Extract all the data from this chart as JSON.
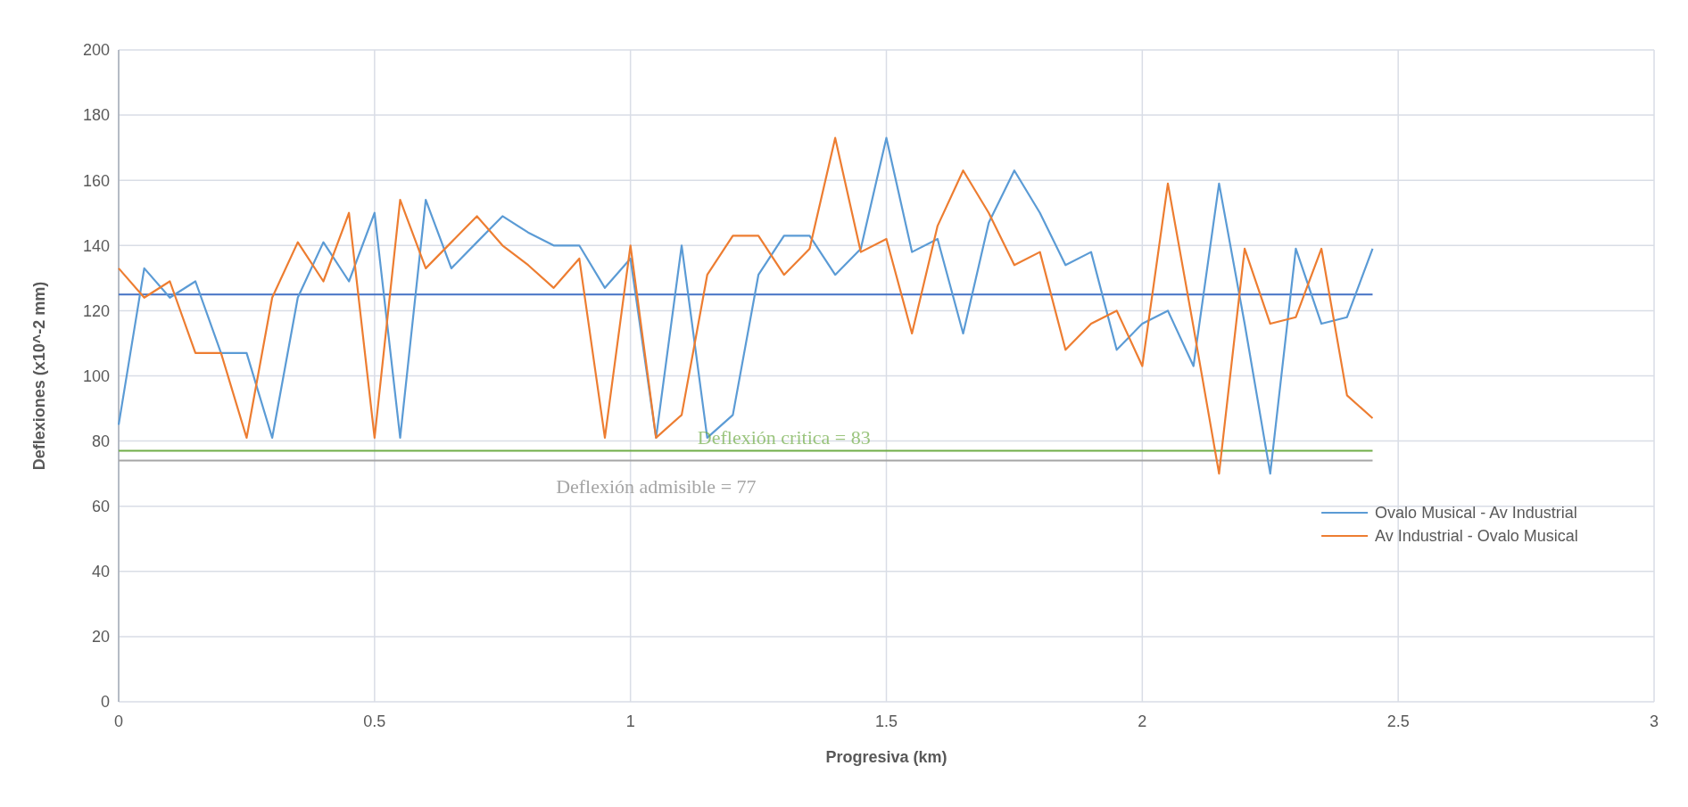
{
  "chart_data": {
    "type": "line",
    "xlabel": "Progresiva (km)",
    "ylabel": "Deflexiones (x10^-2 mm)",
    "x": [
      0,
      0.05,
      0.1,
      0.15,
      0.2,
      0.25,
      0.3,
      0.35,
      0.4,
      0.45,
      0.5,
      0.55,
      0.6,
      0.65,
      0.7,
      0.75,
      0.8,
      0.85,
      0.9,
      0.95,
      1,
      1.05,
      1.1,
      1.15,
      1.2,
      1.25,
      1.3,
      1.35,
      1.4,
      1.45,
      1.5,
      1.55,
      1.6,
      1.65,
      1.7,
      1.75,
      1.8,
      1.85,
      1.9,
      1.95,
      2,
      2.05,
      2.1,
      2.15,
      2.2,
      2.25,
      2.3,
      2.35,
      2.4,
      2.45
    ],
    "series": [
      {
        "name": "Ovalo Musical - Av Industrial",
        "color": "#5b9bd5",
        "values": [
          85,
          133,
          124,
          129,
          107,
          107,
          81,
          124,
          141,
          129,
          150,
          81,
          154,
          133,
          141,
          149,
          144,
          140,
          140,
          127,
          136,
          81,
          140,
          81,
          88,
          131,
          143,
          143,
          131,
          139,
          173,
          138,
          142,
          113,
          147,
          163,
          150,
          134,
          138,
          108,
          116,
          120,
          103,
          159,
          116,
          70,
          139,
          116,
          118,
          139
        ]
      },
      {
        "name": "Av Industrial - Ovalo Musical",
        "color": "#ed7d31",
        "values": [
          133,
          124,
          129,
          107,
          107,
          81,
          124,
          141,
          129,
          150,
          81,
          154,
          133,
          141,
          149,
          140,
          134,
          127,
          136,
          81,
          140,
          81,
          88,
          131,
          143,
          143,
          131,
          139,
          173,
          138,
          142,
          113,
          146,
          163,
          150,
          134,
          138,
          108,
          116,
          120,
          103,
          159,
          115,
          70,
          139,
          116,
          118,
          139,
          94,
          87
        ]
      }
    ],
    "ref_lines": [
      {
        "axis": "y",
        "value": 125,
        "color": "#4472c4"
      },
      {
        "axis": "y",
        "value": 77,
        "color": "#70ad47"
      },
      {
        "axis": "y",
        "value": 74,
        "color": "#a5a5a5"
      }
    ],
    "annotations": [
      "Deflexión critica = 83",
      "Deflexión admisible = 77"
    ],
    "xlim": [
      0,
      3
    ],
    "xticks": [
      0,
      0.5,
      1,
      1.5,
      2,
      2.5,
      3
    ],
    "ylim": [
      0,
      200
    ],
    "yticks": [
      0,
      20,
      40,
      60,
      80,
      100,
      120,
      140,
      160,
      180,
      200
    ],
    "grid": true,
    "legend": "right"
  }
}
